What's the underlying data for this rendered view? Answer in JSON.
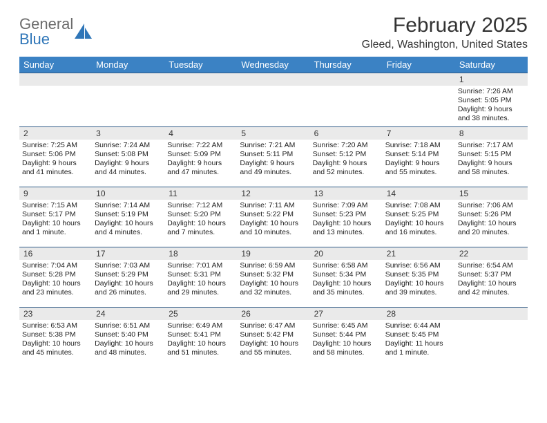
{
  "brand": {
    "text1": "General",
    "text2": "Blue"
  },
  "title": "February 2025",
  "location": "Gleed, Washington, United States",
  "colors": {
    "header_bg": "#3b82c4",
    "header_text": "#ffffff",
    "daynum_bg": "#eaeaea",
    "border": "#2f5a86",
    "logo_gray": "#6b6b6b",
    "logo_blue": "#2f76b8",
    "page_bg": "#ffffff",
    "body_text": "#222222"
  },
  "dow": [
    "Sunday",
    "Monday",
    "Tuesday",
    "Wednesday",
    "Thursday",
    "Friday",
    "Saturday"
  ],
  "weeks": [
    [
      {
        "n": "",
        "lines": []
      },
      {
        "n": "",
        "lines": []
      },
      {
        "n": "",
        "lines": []
      },
      {
        "n": "",
        "lines": []
      },
      {
        "n": "",
        "lines": []
      },
      {
        "n": "",
        "lines": []
      },
      {
        "n": "1",
        "lines": [
          "Sunrise: 7:26 AM",
          "Sunset: 5:05 PM",
          "Daylight: 9 hours",
          "and 38 minutes."
        ]
      }
    ],
    [
      {
        "n": "2",
        "lines": [
          "Sunrise: 7:25 AM",
          "Sunset: 5:06 PM",
          "Daylight: 9 hours",
          "and 41 minutes."
        ]
      },
      {
        "n": "3",
        "lines": [
          "Sunrise: 7:24 AM",
          "Sunset: 5:08 PM",
          "Daylight: 9 hours",
          "and 44 minutes."
        ]
      },
      {
        "n": "4",
        "lines": [
          "Sunrise: 7:22 AM",
          "Sunset: 5:09 PM",
          "Daylight: 9 hours",
          "and 47 minutes."
        ]
      },
      {
        "n": "5",
        "lines": [
          "Sunrise: 7:21 AM",
          "Sunset: 5:11 PM",
          "Daylight: 9 hours",
          "and 49 minutes."
        ]
      },
      {
        "n": "6",
        "lines": [
          "Sunrise: 7:20 AM",
          "Sunset: 5:12 PM",
          "Daylight: 9 hours",
          "and 52 minutes."
        ]
      },
      {
        "n": "7",
        "lines": [
          "Sunrise: 7:18 AM",
          "Sunset: 5:14 PM",
          "Daylight: 9 hours",
          "and 55 minutes."
        ]
      },
      {
        "n": "8",
        "lines": [
          "Sunrise: 7:17 AM",
          "Sunset: 5:15 PM",
          "Daylight: 9 hours",
          "and 58 minutes."
        ]
      }
    ],
    [
      {
        "n": "9",
        "lines": [
          "Sunrise: 7:15 AM",
          "Sunset: 5:17 PM",
          "Daylight: 10 hours",
          "and 1 minute."
        ]
      },
      {
        "n": "10",
        "lines": [
          "Sunrise: 7:14 AM",
          "Sunset: 5:19 PM",
          "Daylight: 10 hours",
          "and 4 minutes."
        ]
      },
      {
        "n": "11",
        "lines": [
          "Sunrise: 7:12 AM",
          "Sunset: 5:20 PM",
          "Daylight: 10 hours",
          "and 7 minutes."
        ]
      },
      {
        "n": "12",
        "lines": [
          "Sunrise: 7:11 AM",
          "Sunset: 5:22 PM",
          "Daylight: 10 hours",
          "and 10 minutes."
        ]
      },
      {
        "n": "13",
        "lines": [
          "Sunrise: 7:09 AM",
          "Sunset: 5:23 PM",
          "Daylight: 10 hours",
          "and 13 minutes."
        ]
      },
      {
        "n": "14",
        "lines": [
          "Sunrise: 7:08 AM",
          "Sunset: 5:25 PM",
          "Daylight: 10 hours",
          "and 16 minutes."
        ]
      },
      {
        "n": "15",
        "lines": [
          "Sunrise: 7:06 AM",
          "Sunset: 5:26 PM",
          "Daylight: 10 hours",
          "and 20 minutes."
        ]
      }
    ],
    [
      {
        "n": "16",
        "lines": [
          "Sunrise: 7:04 AM",
          "Sunset: 5:28 PM",
          "Daylight: 10 hours",
          "and 23 minutes."
        ]
      },
      {
        "n": "17",
        "lines": [
          "Sunrise: 7:03 AM",
          "Sunset: 5:29 PM",
          "Daylight: 10 hours",
          "and 26 minutes."
        ]
      },
      {
        "n": "18",
        "lines": [
          "Sunrise: 7:01 AM",
          "Sunset: 5:31 PM",
          "Daylight: 10 hours",
          "and 29 minutes."
        ]
      },
      {
        "n": "19",
        "lines": [
          "Sunrise: 6:59 AM",
          "Sunset: 5:32 PM",
          "Daylight: 10 hours",
          "and 32 minutes."
        ]
      },
      {
        "n": "20",
        "lines": [
          "Sunrise: 6:58 AM",
          "Sunset: 5:34 PM",
          "Daylight: 10 hours",
          "and 35 minutes."
        ]
      },
      {
        "n": "21",
        "lines": [
          "Sunrise: 6:56 AM",
          "Sunset: 5:35 PM",
          "Daylight: 10 hours",
          "and 39 minutes."
        ]
      },
      {
        "n": "22",
        "lines": [
          "Sunrise: 6:54 AM",
          "Sunset: 5:37 PM",
          "Daylight: 10 hours",
          "and 42 minutes."
        ]
      }
    ],
    [
      {
        "n": "23",
        "lines": [
          "Sunrise: 6:53 AM",
          "Sunset: 5:38 PM",
          "Daylight: 10 hours",
          "and 45 minutes."
        ]
      },
      {
        "n": "24",
        "lines": [
          "Sunrise: 6:51 AM",
          "Sunset: 5:40 PM",
          "Daylight: 10 hours",
          "and 48 minutes."
        ]
      },
      {
        "n": "25",
        "lines": [
          "Sunrise: 6:49 AM",
          "Sunset: 5:41 PM",
          "Daylight: 10 hours",
          "and 51 minutes."
        ]
      },
      {
        "n": "26",
        "lines": [
          "Sunrise: 6:47 AM",
          "Sunset: 5:42 PM",
          "Daylight: 10 hours",
          "and 55 minutes."
        ]
      },
      {
        "n": "27",
        "lines": [
          "Sunrise: 6:45 AM",
          "Sunset: 5:44 PM",
          "Daylight: 10 hours",
          "and 58 minutes."
        ]
      },
      {
        "n": "28",
        "lines": [
          "Sunrise: 6:44 AM",
          "Sunset: 5:45 PM",
          "Daylight: 11 hours",
          "and 1 minute."
        ]
      },
      {
        "n": "",
        "lines": []
      }
    ]
  ]
}
